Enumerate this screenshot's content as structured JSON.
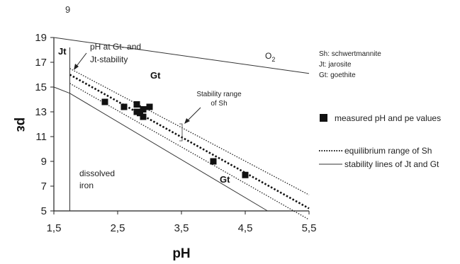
{
  "page": {
    "number": "9"
  },
  "chart_data": {
    "type": "scatter",
    "title": "",
    "xlabel": "pH",
    "ylabel": "pε",
    "xlim": [
      1.5,
      5.5
    ],
    "ylim": [
      5,
      19
    ],
    "xticks": [
      "1,5",
      "2,5",
      "3,5",
      "4,5",
      "5,5"
    ],
    "yticks": [
      "5",
      "7",
      "9",
      "11",
      "13",
      "15",
      "17",
      "19"
    ],
    "points": [
      {
        "x": 2.3,
        "y": 13.8
      },
      {
        "x": 2.6,
        "y": 13.4
      },
      {
        "x": 2.8,
        "y": 13.6
      },
      {
        "x": 2.8,
        "y": 13.0
      },
      {
        "x": 2.85,
        "y": 12.9
      },
      {
        "x": 2.9,
        "y": 13.2
      },
      {
        "x": 2.9,
        "y": 12.6
      },
      {
        "x": 3.0,
        "y": 13.4
      },
      {
        "x": 4.0,
        "y": 9.0
      },
      {
        "x": 4.5,
        "y": 7.9
      }
    ],
    "lines": {
      "jt_gt_boundary": [
        [
          1.75,
          18.2
        ],
        [
          1.75,
          5
        ]
      ],
      "fe_solubility": [
        [
          1.5,
          15.0
        ],
        [
          1.75,
          14.5
        ],
        [
          4.85,
          5
        ]
      ],
      "o2_line": [
        [
          1.5,
          19.0
        ],
        [
          5.5,
          16.1
        ]
      ],
      "eq_upper": [
        [
          1.75,
          16.5
        ],
        [
          5.5,
          6.3
        ]
      ],
      "eq_center": [
        [
          1.75,
          16.0
        ],
        [
          5.5,
          5.2
        ]
      ],
      "eq_lower": [
        [
          1.75,
          15.3
        ],
        [
          5.5,
          4.3
        ]
      ]
    },
    "annotations": {
      "jt": "Jt",
      "ph_gt_jt": [
        "pH at Gt- and",
        "Jt-stability"
      ],
      "gt_upper": "Gt",
      "o2": "O",
      "o2_sub": "2",
      "stability_range": [
        "Stability range",
        "of Sh"
      ],
      "dissolved_iron": [
        "dissolved",
        "iron"
      ],
      "gt_lower": "Gt"
    },
    "legend": {
      "abbrev": [
        "Sh: schwertmannite",
        "Jt:  jarosite",
        "Gt: goethite"
      ],
      "measured": "measured pH and pe values",
      "equilibrium": "equilibrium range of Sh",
      "stability": "stability lines of Jt and  Gt"
    }
  }
}
